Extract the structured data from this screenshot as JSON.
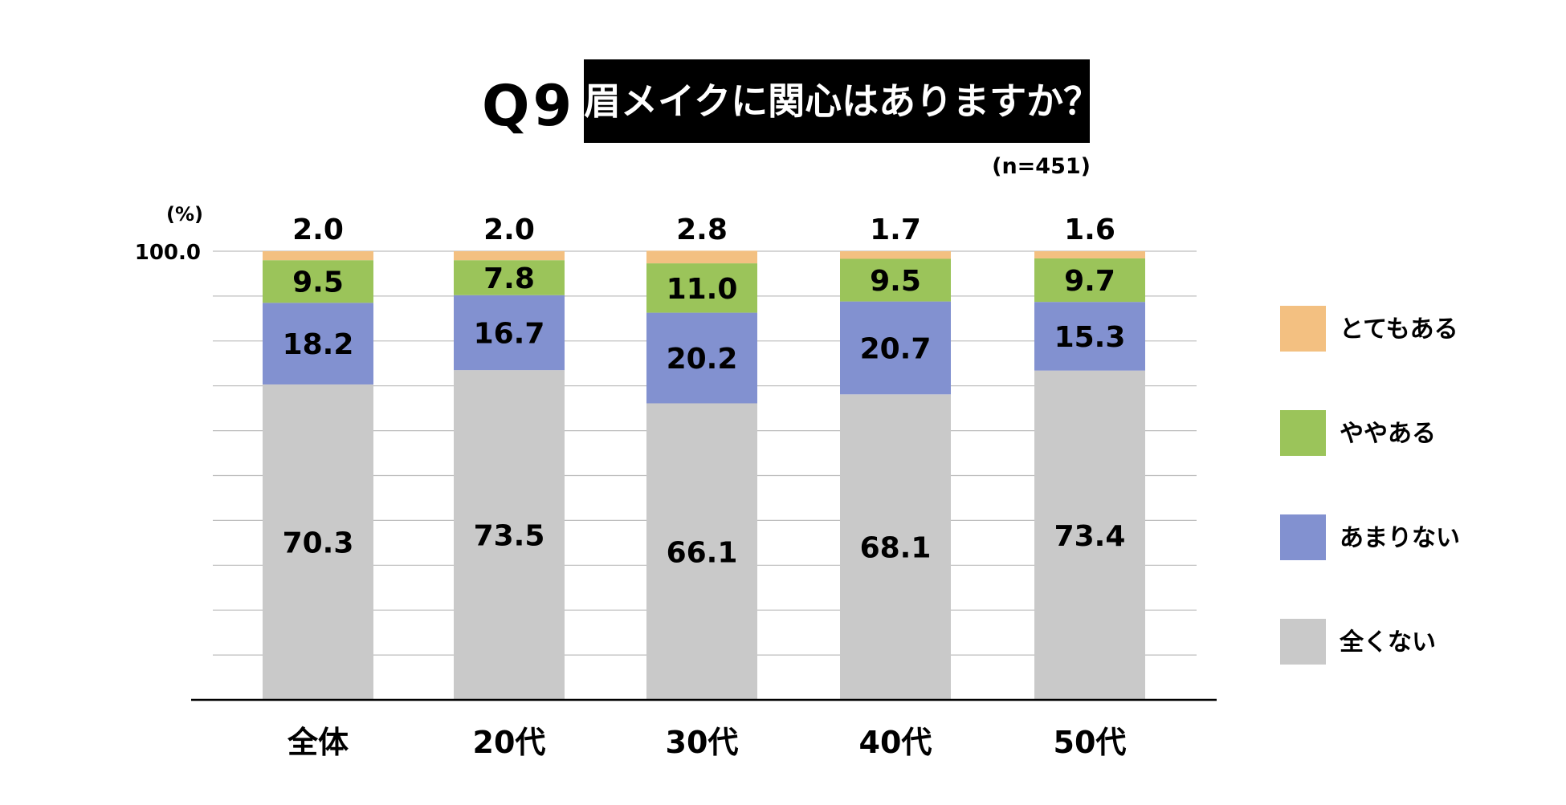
{
  "header": {
    "question_label": "Q9",
    "question_text": "眉メイクに関心はありますか？",
    "sample_size": "(n=451)"
  },
  "chart_data": {
    "type": "bar",
    "stacked": true,
    "unit_label": "(%)",
    "y_top_tick": "100.0",
    "ylim": [
      0,
      100
    ],
    "grid": true,
    "legend_position": "right",
    "categories": [
      "全体",
      "20代",
      "30代",
      "40代",
      "50代"
    ],
    "series": [
      {
        "name": "全くない",
        "color": "#c9c9c9",
        "values": [
          70.3,
          73.5,
          66.1,
          68.1,
          73.4
        ],
        "labels": [
          "70.3",
          "73.5",
          "66.1",
          "68.1",
          "73.4"
        ]
      },
      {
        "name": "あまりない",
        "color": "#8291d0",
        "values": [
          18.2,
          16.7,
          20.2,
          20.7,
          15.3
        ],
        "labels": [
          "18.2",
          "16.7",
          "20.2",
          "20.7",
          "15.3"
        ]
      },
      {
        "name": "ややある",
        "color": "#9bc45a",
        "values": [
          9.5,
          7.8,
          11.0,
          9.5,
          9.7
        ],
        "labels": [
          "9.5",
          "7.8",
          "11.0",
          "9.5",
          "9.7"
        ]
      },
      {
        "name": "とてもある",
        "color": "#f3c081",
        "values": [
          2.0,
          2.0,
          2.8,
          1.7,
          1.6
        ],
        "labels": [
          "2.0",
          "2.0",
          "2.8",
          "1.7",
          "1.6"
        ]
      }
    ],
    "legend_order": [
      "とてもある",
      "ややある",
      "あまりない",
      "全くない"
    ]
  }
}
